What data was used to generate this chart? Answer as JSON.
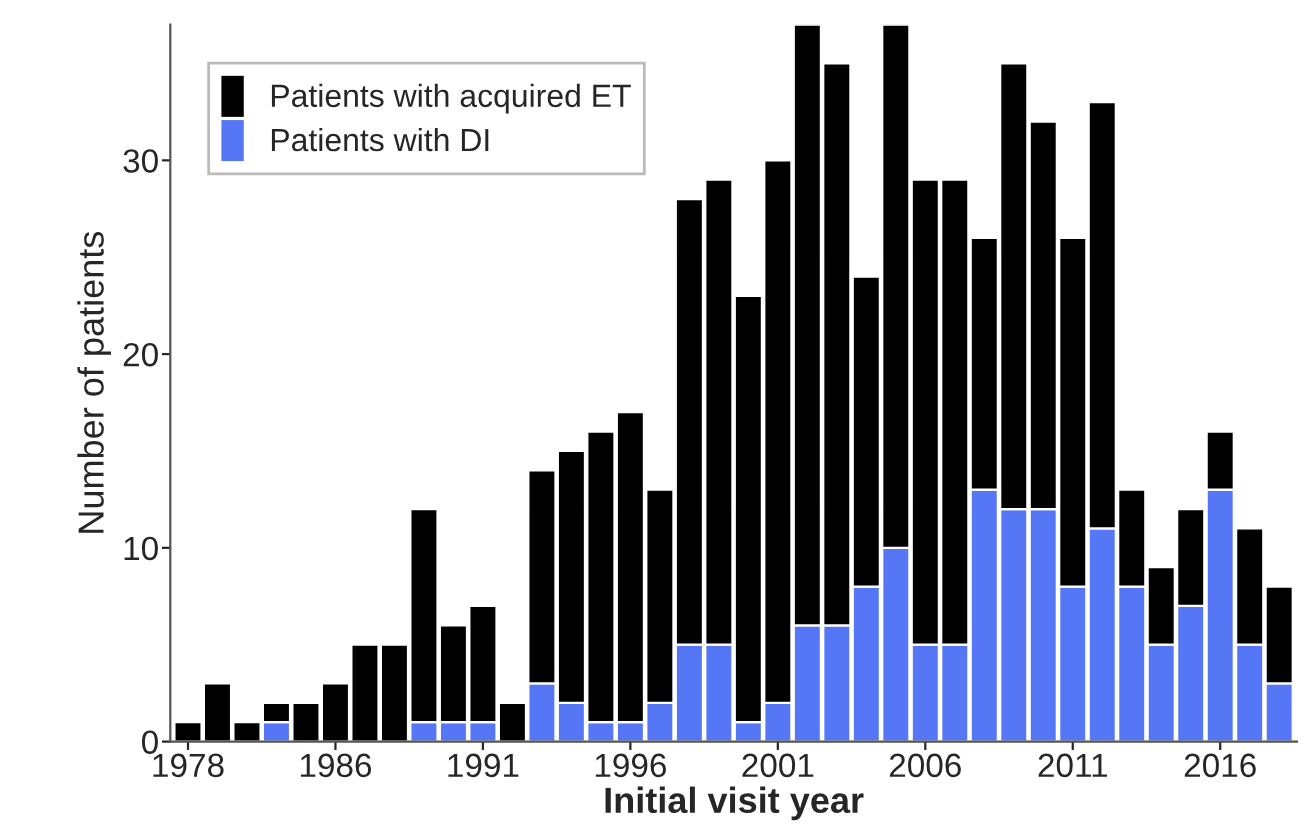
{
  "chart_data": {
    "type": "bar",
    "stacked": true,
    "xlabel": "Initial visit year",
    "ylabel": "Number of patients",
    "categories": [
      "1978",
      null,
      null,
      null,
      null,
      "1986",
      null,
      null,
      null,
      null,
      "1991",
      null,
      null,
      null,
      null,
      "1996",
      null,
      null,
      null,
      null,
      "2001",
      null,
      null,
      null,
      null,
      "2006",
      null,
      null,
      null,
      null,
      "2011",
      null,
      null,
      null,
      null,
      "2016",
      null,
      null
    ],
    "series": [
      {
        "name": "Patients with DI",
        "color": "#5577f5",
        "values": [
          0,
          0,
          0,
          1,
          0,
          0,
          0,
          0,
          1,
          1,
          1,
          0,
          3,
          2,
          1,
          1,
          2,
          5,
          5,
          1,
          2,
          6,
          6,
          8,
          10,
          5,
          5,
          13,
          12,
          12,
          8,
          11,
          8,
          5,
          7,
          13,
          5,
          3
        ]
      },
      {
        "name": "Patients with acquired ET",
        "color": "#000000",
        "values": [
          1,
          3,
          1,
          1,
          2,
          3,
          5,
          5,
          11,
          5,
          6,
          2,
          11,
          13,
          15,
          16,
          11,
          23,
          24,
          22,
          28,
          31,
          29,
          16,
          27,
          24,
          24,
          13,
          23,
          20,
          18,
          22,
          5,
          4,
          5,
          3,
          6,
          5
        ]
      }
    ],
    "ylim": [
      0,
      37
    ],
    "yticks": [
      0,
      10,
      20,
      30
    ],
    "grid": false,
    "legend": "top left"
  }
}
